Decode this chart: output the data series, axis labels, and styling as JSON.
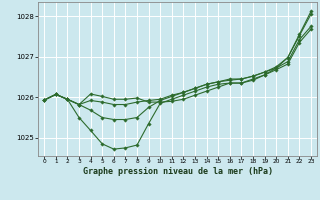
{
  "background_color": "#cce8ee",
  "grid_color": "#b0d8e0",
  "line_color": "#2d6b2d",
  "marker_color": "#2d6b2d",
  "xlabel": "Graphe pression niveau de la mer (hPa)",
  "xlabel_color": "#1a3a1a",
  "ylim": [
    1024.55,
    1028.35
  ],
  "yticks": [
    1025,
    1026,
    1027,
    1028
  ],
  "xticks": [
    0,
    1,
    2,
    3,
    4,
    5,
    6,
    7,
    8,
    9,
    10,
    11,
    12,
    13,
    14,
    15,
    16,
    17,
    18,
    19,
    20,
    21,
    22,
    23
  ],
  "series": [
    [
      1025.93,
      1026.07,
      1025.95,
      1025.5,
      1025.18,
      1024.85,
      1024.72,
      1024.75,
      1024.82,
      1025.35,
      1025.85,
      1025.95,
      1026.05,
      1026.15,
      1026.25,
      1026.32,
      1026.35,
      1026.35,
      1026.42,
      1026.55,
      1026.72,
      1026.98,
      1027.55,
      1028.12
    ],
    [
      1025.93,
      1026.07,
      1025.95,
      1025.82,
      1025.68,
      1025.5,
      1025.45,
      1025.45,
      1025.5,
      1025.75,
      1025.92,
      1026.02,
      1026.12,
      1026.22,
      1026.32,
      1026.38,
      1026.45,
      1026.45,
      1026.52,
      1026.62,
      1026.75,
      1026.98,
      1027.52,
      1028.05
    ],
    [
      1025.93,
      1026.07,
      1025.95,
      1025.82,
      1025.92,
      1025.88,
      1025.82,
      1025.82,
      1025.88,
      1025.92,
      1025.95,
      1026.05,
      1026.12,
      1026.22,
      1026.32,
      1026.38,
      1026.42,
      1026.45,
      1026.52,
      1026.62,
      1026.72,
      1026.88,
      1027.42,
      1027.75
    ],
    [
      1025.93,
      1026.07,
      1025.95,
      1025.82,
      1026.08,
      1026.02,
      1025.95,
      1025.95,
      1025.98,
      1025.88,
      1025.88,
      1025.9,
      1025.95,
      1026.05,
      1026.15,
      1026.25,
      1026.35,
      1026.35,
      1026.45,
      1026.55,
      1026.68,
      1026.82,
      1027.35,
      1027.68
    ]
  ]
}
